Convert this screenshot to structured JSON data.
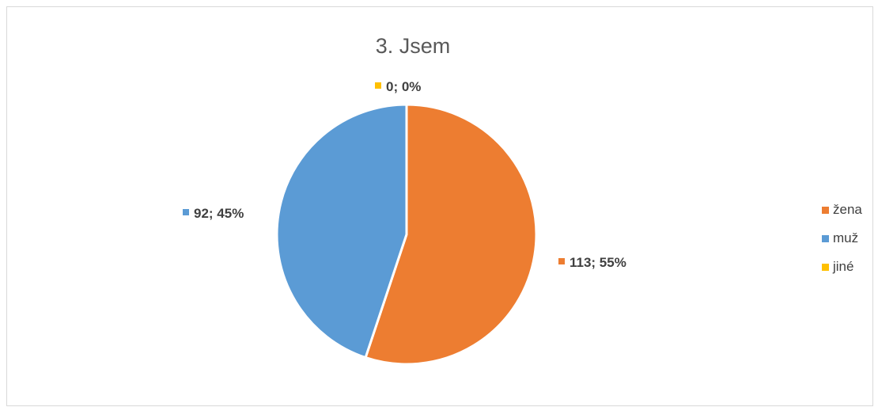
{
  "chart_data": {
    "type": "pie",
    "title": "3. Jsem",
    "categories": [
      "žena",
      "muž",
      "jiné"
    ],
    "values": [
      113,
      92,
      0
    ],
    "percentages": [
      "55%",
      "45%",
      "0%"
    ],
    "data_labels": [
      "113; 55%",
      "92; 45%",
      "0; 0%"
    ],
    "colors": [
      "#ED7D31",
      "#5B9BD5",
      "#FFC000"
    ],
    "legend_position": "right",
    "start_angle": "12 o'clock, clockwise"
  }
}
